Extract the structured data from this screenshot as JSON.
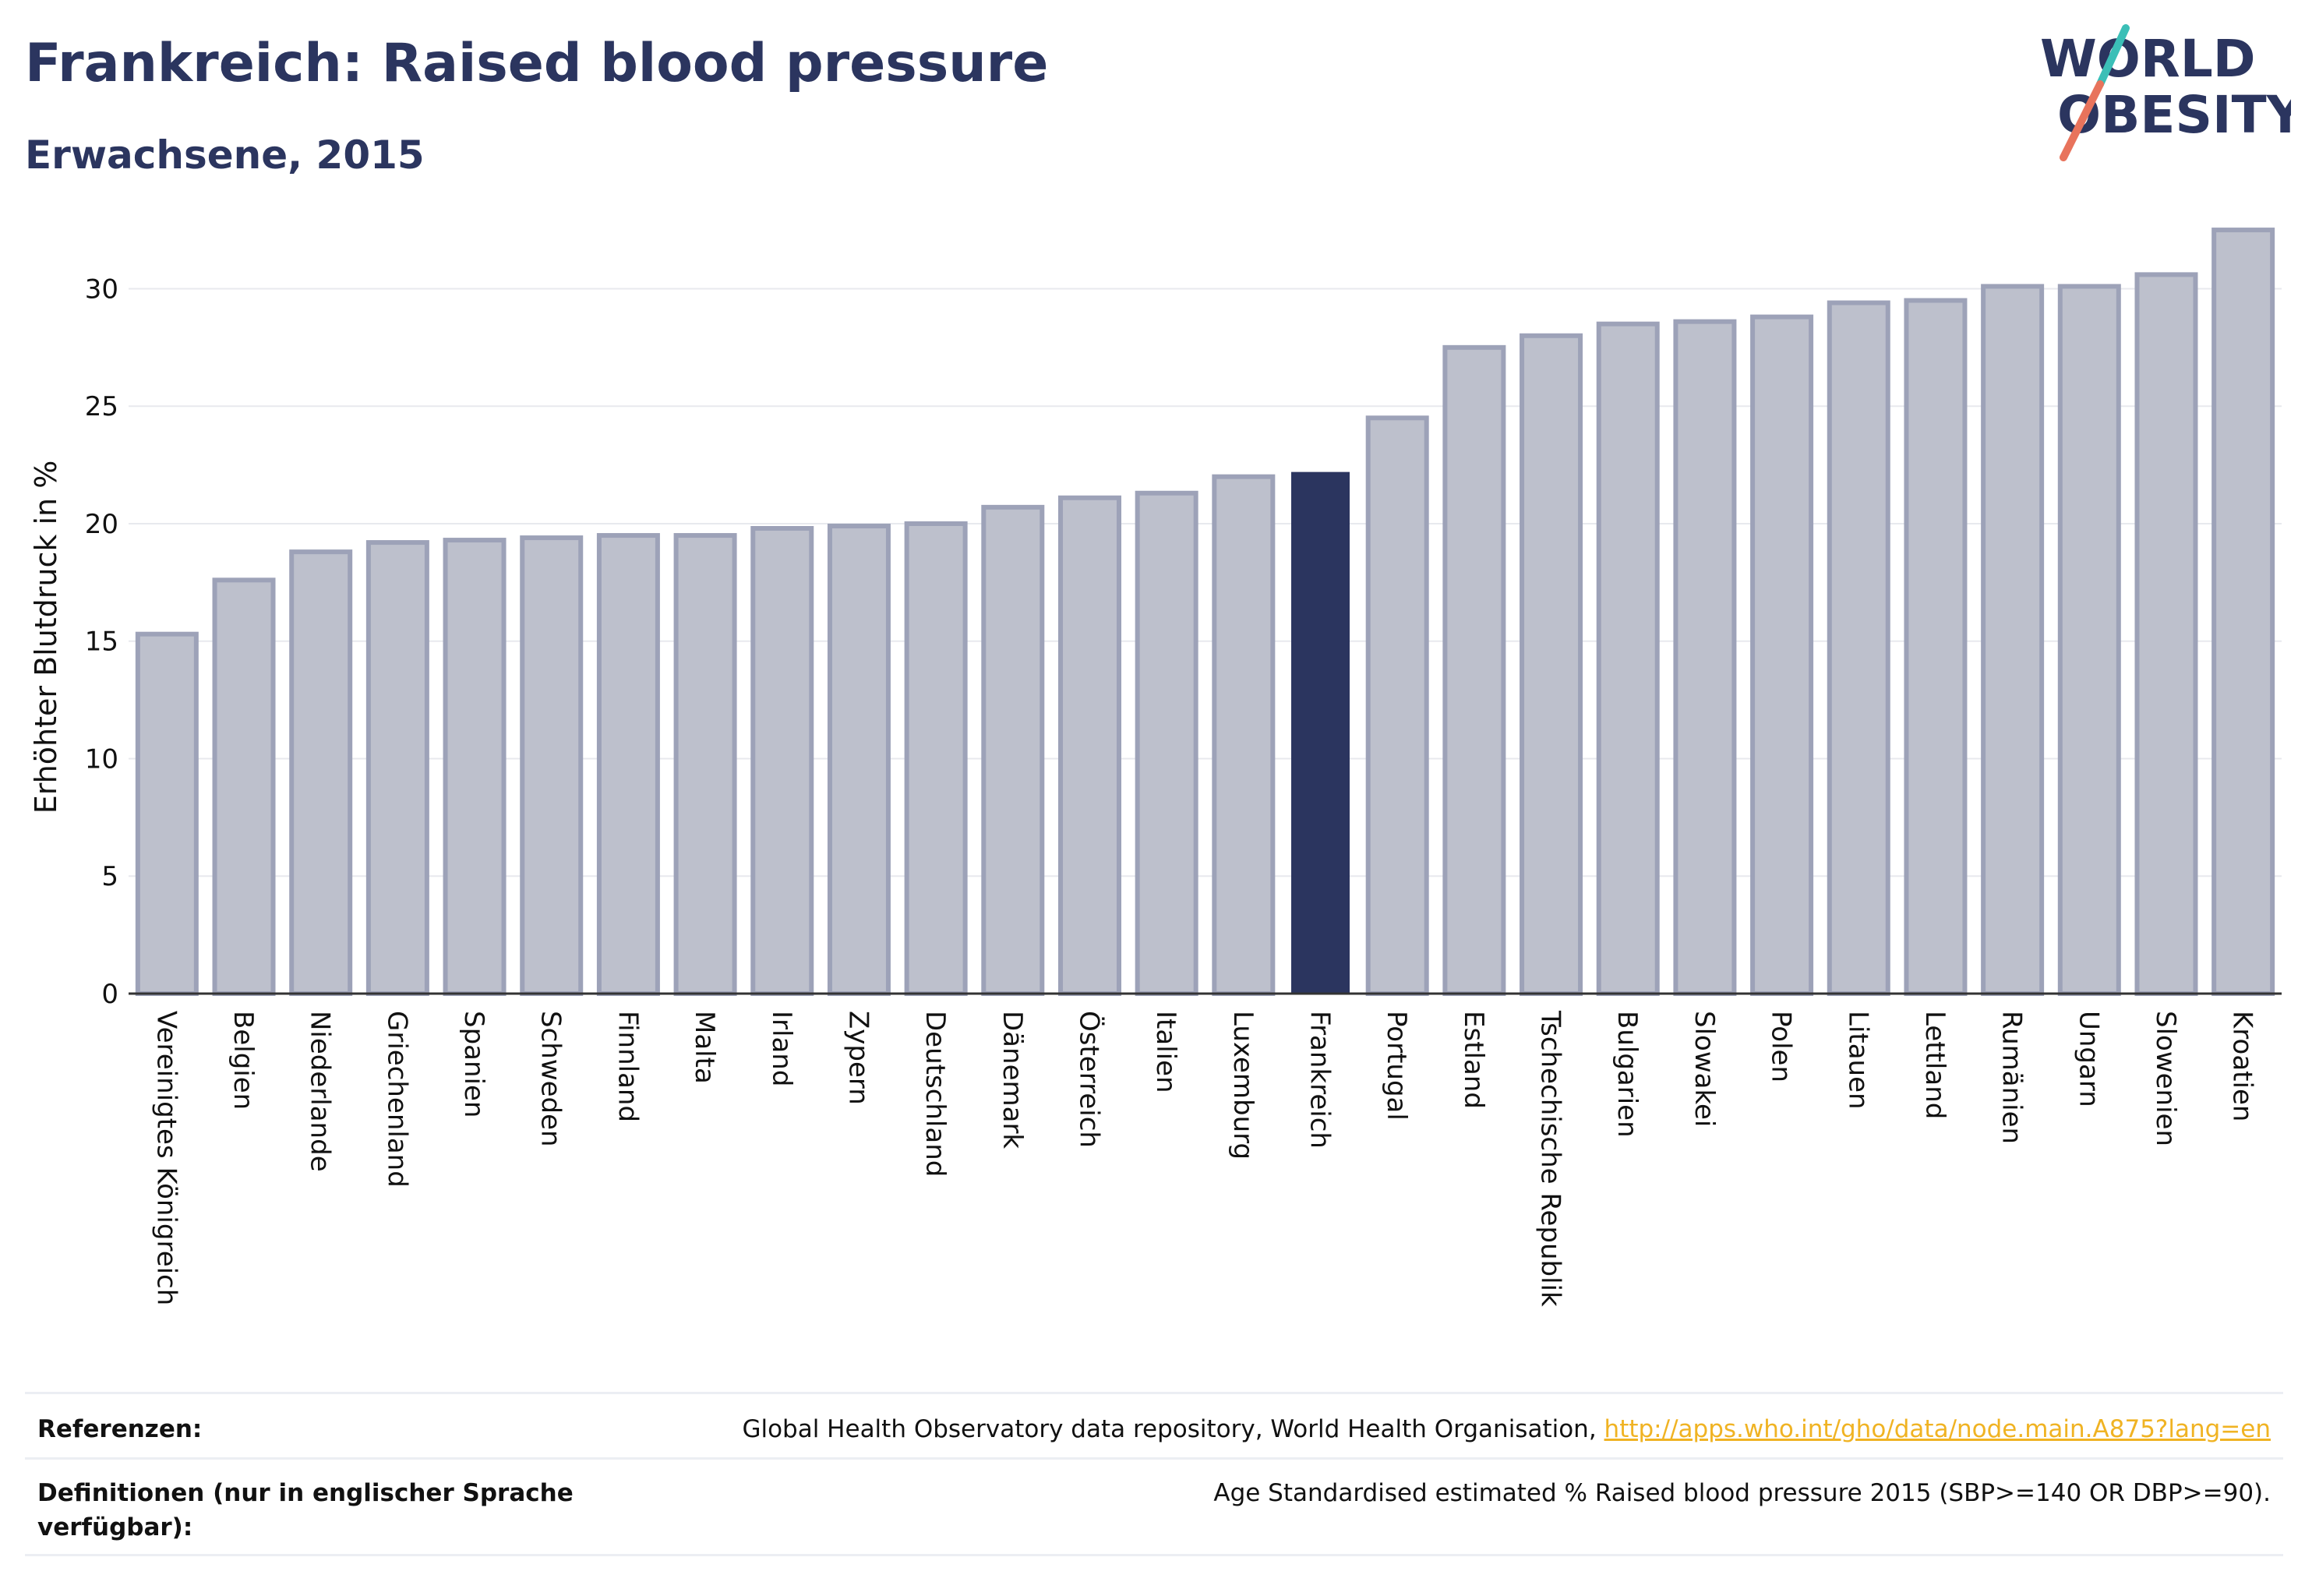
{
  "header": {
    "title": "Frankreich: Raised blood pressure",
    "subtitle": "Erwachsene, 2015"
  },
  "logo": {
    "line1": "WORLD",
    "line2": "OBESITY"
  },
  "chart_data": {
    "type": "bar",
    "ylabel": "Erhöhter Blutdruck in %",
    "ylim": [
      0,
      33
    ],
    "yticks": [
      0,
      5,
      10,
      15,
      20,
      25,
      30
    ],
    "grid": true,
    "highlight": "Frankreich",
    "colors": {
      "bar_fill": "#bdc0cc",
      "bar_stroke": "#9da2b8",
      "highlight_fill": "#2b355f",
      "gridline": "#e8e9ee",
      "axis": "#333333"
    },
    "categories": [
      "Vereinigtes Königreich",
      "Belgien",
      "Niederlande",
      "Griechenland",
      "Spanien",
      "Schweden",
      "Finnland",
      "Malta",
      "Irland",
      "Zypern",
      "Deutschland",
      "Dänemark",
      "Österreich",
      "Italien",
      "Luxemburg",
      "Frankreich",
      "Portugal",
      "Estland",
      "Tschechische Republik",
      "Bulgarien",
      "Slowakei",
      "Polen",
      "Litauen",
      "Lettland",
      "Rumänien",
      "Ungarn",
      "Slowenien",
      "Kroatien"
    ],
    "values": [
      15.3,
      17.6,
      18.8,
      19.2,
      19.3,
      19.4,
      19.5,
      19.5,
      19.8,
      19.9,
      20.0,
      20.7,
      21.1,
      21.3,
      22.0,
      22.2,
      24.5,
      27.5,
      28.0,
      28.5,
      28.6,
      28.8,
      29.4,
      29.5,
      30.1,
      30.1,
      30.6,
      32.5
    ]
  },
  "footer": {
    "references_label": "Referenzen:",
    "references_text": "Global Health Observatory data repository, World Health Organisation, ",
    "references_link": "http://apps.who.int/gho/data/node.main.A875?lang=en",
    "definitions_label": "Definitionen (nur in englischer Sprache verfügbar):",
    "definitions_text": "Age Standardised estimated % Raised blood pressure 2015 (SBP>=140 OR DBP>=90)."
  }
}
